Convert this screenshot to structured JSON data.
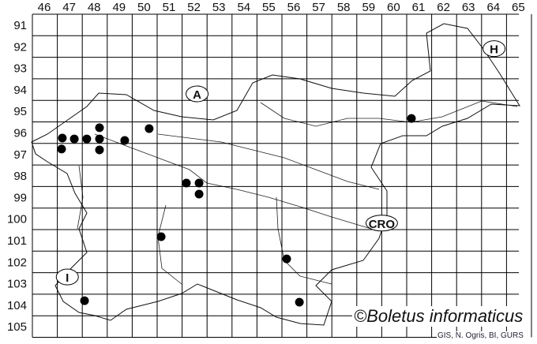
{
  "map": {
    "col_labels": [
      "46",
      "47",
      "48",
      "49",
      "50",
      "51",
      "52",
      "53",
      "54",
      "55",
      "56",
      "57",
      "58",
      "59",
      "60",
      "61",
      "62",
      "63",
      "64",
      "65"
    ],
    "row_labels": [
      "91",
      "92",
      "93",
      "94",
      "95",
      "96",
      "97",
      "98",
      "99",
      "100",
      "101",
      "102",
      "103",
      "104",
      "105"
    ],
    "country_labels": [
      {
        "text": "A",
        "col": 52.6,
        "row": 94.7
      },
      {
        "text": "H",
        "col": 64.5,
        "row": 92.6
      },
      {
        "text": "CRO",
        "col": 60.0,
        "row": 100.7
      },
      {
        "text": "I",
        "col": 47.4,
        "row": 103.2
      }
    ],
    "occurrences": [
      {
        "col": 47.2,
        "row": 96.75
      },
      {
        "col": 47.68,
        "row": 96.79
      },
      {
        "col": 48.18,
        "row": 96.79
      },
      {
        "col": 48.69,
        "row": 96.27
      },
      {
        "col": 48.69,
        "row": 96.79
      },
      {
        "col": 48.69,
        "row": 97.3
      },
      {
        "col": 49.7,
        "row": 96.86
      },
      {
        "col": 47.17,
        "row": 97.26
      },
      {
        "col": 50.68,
        "row": 96.31
      },
      {
        "col": 52.17,
        "row": 98.84
      },
      {
        "col": 52.68,
        "row": 98.84
      },
      {
        "col": 52.68,
        "row": 99.35
      },
      {
        "col": 51.16,
        "row": 101.33
      },
      {
        "col": 56.19,
        "row": 102.36
      },
      {
        "col": 48.09,
        "row": 104.3
      },
      {
        "col": 56.7,
        "row": 104.37
      },
      {
        "col": 61.19,
        "row": 95.84
      }
    ],
    "dot_color": "#000000"
  },
  "credit": "©Boletus informaticus",
  "source": "GIS, N. Ogris, BI, GURS"
}
